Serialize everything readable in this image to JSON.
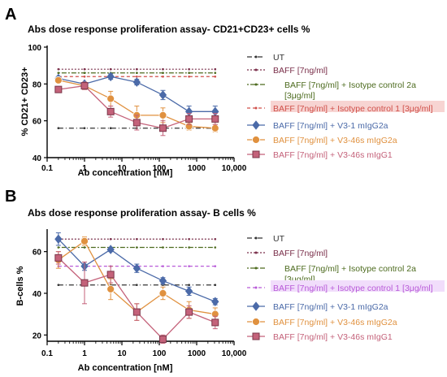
{
  "chart_data": [
    {
      "panel": "A",
      "type": "line",
      "title": "Abs dose response proliferation assay- CD21+CD23+ cells %",
      "xlabel": "Ab concentration [nM]",
      "ylabel": "% CD21+ CD23+",
      "xscale": "log",
      "xlim": [
        0.1,
        10000
      ],
      "xticks": [
        "0.1",
        "1",
        "10",
        "100",
        "1000",
        "10,000"
      ],
      "ylim": [
        40,
        100
      ],
      "yticks": [
        "40",
        "60",
        "80",
        "100"
      ],
      "grid": false,
      "legend_position": "right",
      "reference_lines": [
        {
          "name": "UT",
          "y": 56,
          "color": "#333333",
          "dash": "6,3,1,3"
        },
        {
          "name": "BAFF [7ng/ml]",
          "y": 88,
          "color": "#7a2f4a",
          "dash": "2,2"
        },
        {
          "name": "BAFF [7ng/ml] + Isotype control 2a [3μg/ml]",
          "y": 86,
          "color": "#4d6b1f",
          "dash": "2,2,6,2"
        },
        {
          "name": "BAFF [7ng/ml] + Isotype control 1 [3μg/ml]",
          "y": 84,
          "color": "#d0504a",
          "dash": "4,3",
          "highlight": "#f7d4d2"
        }
      ],
      "x": [
        0.2,
        1,
        5,
        25,
        125,
        625,
        3125
      ],
      "series": [
        {
          "name": "BAFF [7ng/ml] + V3-1 mIgG2a",
          "color": "#4b6aa8",
          "marker": "diamond",
          "values": [
            83,
            80,
            84,
            81,
            74,
            65,
            65
          ],
          "errors": [
            1,
            1,
            1.5,
            1.5,
            2.5,
            3,
            3
          ]
        },
        {
          "name": "BAFF [7ng/ml] + V3-46s mIgG2a",
          "color": "#e0913f",
          "marker": "circle",
          "values": [
            82,
            79,
            72,
            63,
            63,
            57,
            56
          ],
          "errors": [
            1,
            2,
            4,
            5,
            4,
            2,
            2
          ]
        },
        {
          "name": "BAFF [7ng/ml] + V3-46s mIgG1",
          "color": "#c4627a",
          "marker": "square",
          "values": [
            77,
            79,
            65,
            59,
            56,
            61,
            61
          ],
          "errors": [
            1.5,
            2,
            3,
            4,
            4,
            3,
            3
          ]
        }
      ]
    },
    {
      "panel": "B",
      "type": "line",
      "title": "Abs dose response proliferation assay- B cells %",
      "xlabel": "Ab concentration [nM]",
      "ylabel": "B-cells %",
      "xscale": "log",
      "xlim": [
        0.1,
        10000
      ],
      "xticks": [
        "0.1",
        "1",
        "10",
        "100",
        "1000",
        "10,000"
      ],
      "ylim": [
        17,
        70
      ],
      "yticks": [
        "20",
        "40",
        "60"
      ],
      "grid": false,
      "legend_position": "right",
      "reference_lines": [
        {
          "name": "UT",
          "y": 44,
          "color": "#333333",
          "dash": "6,3,1,3"
        },
        {
          "name": "BAFF [7ng/ml]",
          "y": 66,
          "color": "#7a2f4a",
          "dash": "2,2"
        },
        {
          "name": "BAFF [7ng/ml] + Isotype control 2a [3μg/ml]",
          "y": 62,
          "color": "#4d6b1f",
          "dash": "2,2,6,2"
        },
        {
          "name": "BAFF [7ng/ml] + Isotype control 1 [3μg/ml]",
          "y": 53,
          "color": "#b85ad8",
          "dash": "4,3",
          "highlight": "#f1ddfb"
        }
      ],
      "x": [
        0.2,
        1,
        5,
        25,
        125,
        625,
        3125
      ],
      "series": [
        {
          "name": "BAFF [7ng/ml] + V3-1 mIgG2a",
          "color": "#4b6aa8",
          "marker": "diamond",
          "values": [
            66,
            53,
            61,
            52,
            46,
            41,
            36
          ],
          "errors": [
            3,
            2,
            1,
            2,
            1.5,
            2,
            1.5
          ]
        },
        {
          "name": "BAFF [7ng/ml] + V3-46s mIgG2a",
          "color": "#e0913f",
          "marker": "circle",
          "values": [
            56,
            65,
            42,
            31,
            40,
            32,
            30
          ],
          "errors": [
            4,
            2,
            5,
            4,
            3,
            4,
            3
          ]
        },
        {
          "name": "BAFF [7ng/ml] + V3-46s mIgG1",
          "color": "#c4627a",
          "marker": "square",
          "values": [
            57,
            45,
            49,
            31,
            18,
            31,
            26
          ],
          "errors": [
            3,
            10,
            4,
            4,
            2,
            3,
            3
          ]
        }
      ]
    }
  ]
}
